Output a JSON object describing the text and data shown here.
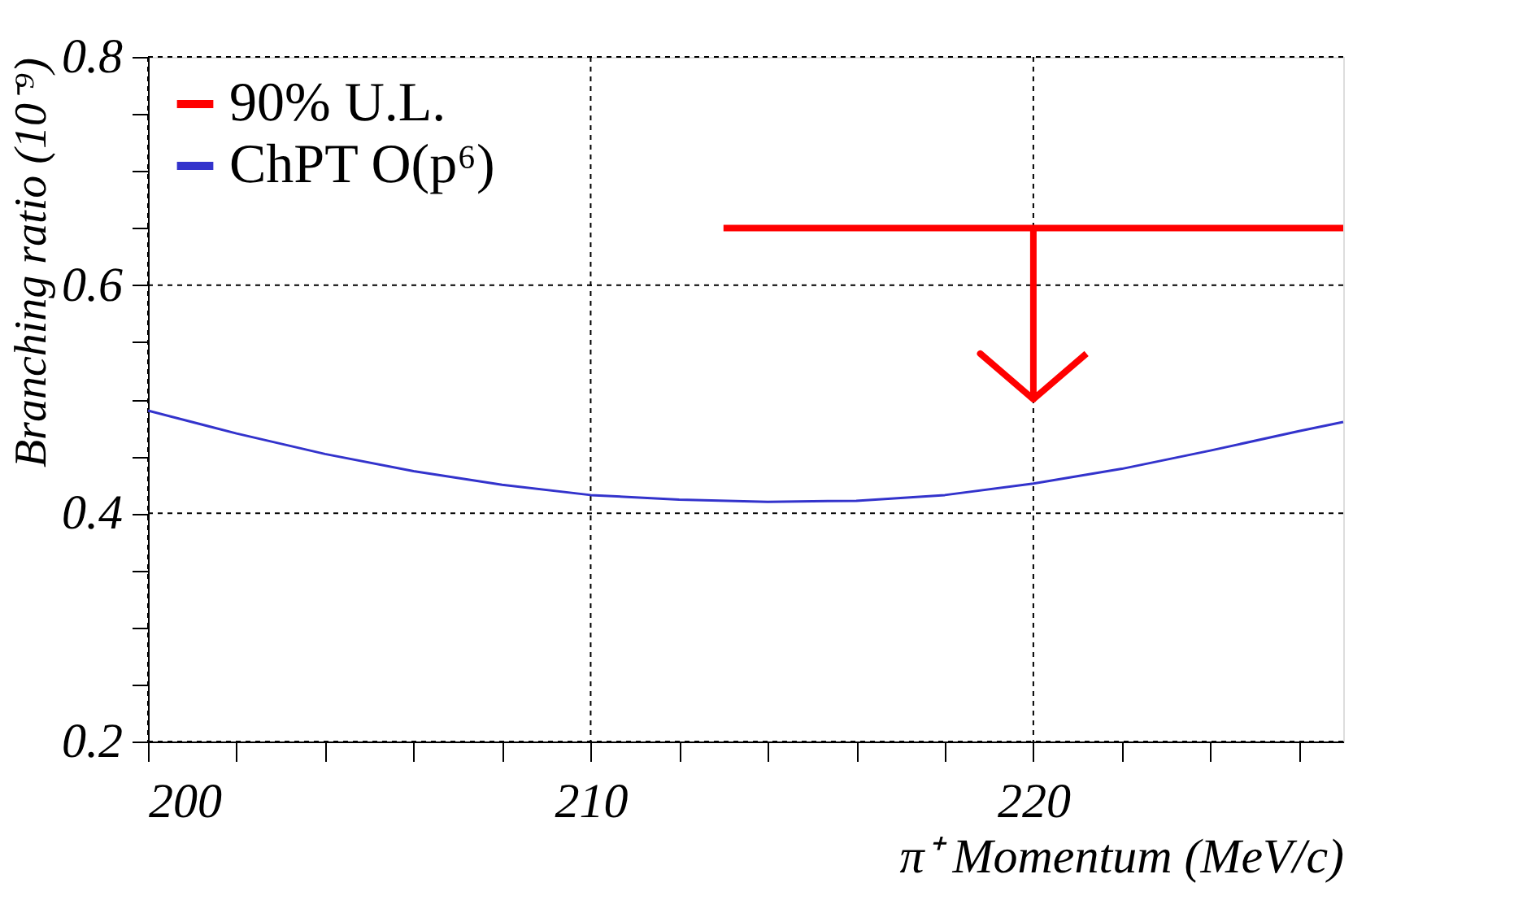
{
  "chart_data": {
    "type": "line",
    "xlabel": "π⁺ Momentum (MeV/c)",
    "ylabel": "Branching ratio (10⁻⁹)",
    "xlim": [
      200,
      227
    ],
    "ylim": [
      0.2,
      0.8
    ],
    "xticks": [
      200,
      {
        "value": 202,
        "label": null
      },
      {
        "value": 204,
        "label": null
      },
      {
        "value": 206,
        "label": null
      },
      {
        "value": 208,
        "label": null
      },
      210,
      {
        "value": 212,
        "label": null
      },
      {
        "value": 214,
        "label": null
      },
      {
        "value": 216,
        "label": null
      },
      {
        "value": 218,
        "label": null
      },
      220,
      {
        "value": 222,
        "label": null
      },
      {
        "value": 224,
        "label": null
      },
      {
        "value": 226,
        "label": null
      }
    ],
    "yticks": [
      0.2,
      {
        "value": 0.25,
        "label": null
      },
      {
        "value": 0.3,
        "label": null
      },
      {
        "value": 0.35,
        "label": null
      },
      0.4,
      {
        "value": 0.45,
        "label": null
      },
      {
        "value": 0.5,
        "label": null
      },
      {
        "value": 0.55,
        "label": null
      },
      0.6,
      {
        "value": 0.65,
        "label": null
      },
      {
        "value": 0.7,
        "label": null
      },
      {
        "value": 0.75,
        "label": null
      },
      0.8
    ],
    "grid": true,
    "line_style": "dashed",
    "legend": "top left",
    "marker": "none",
    "series": [
      {
        "name": "90% U.L.",
        "color": "#ff0000",
        "x": [
          213,
          227
        ],
        "values": [
          0.65,
          0.65
        ],
        "line_style": "solid"
      },
      {
        "color": "#ff0000",
        "x": [
          220,
          220,
          218.8,
          220,
          221.2
        ],
        "values": [
          0.65,
          0.5,
          0.54,
          0.5,
          0.54
        ],
        "line_style": "solid"
      },
      {
        "name": "ChPT O(p⁶)",
        "color": "#3333cc",
        "x": [
          200,
          202,
          204,
          206,
          208,
          210,
          212,
          214,
          216,
          218,
          220,
          222,
          224,
          226,
          227
        ],
        "values": [
          0.49,
          0.47,
          0.452,
          0.437,
          0.425,
          0.416,
          0.412,
          0.41,
          0.411,
          0.416,
          0.426,
          0.439,
          0.455,
          0.472,
          0.48
        ],
        "line_style": "solid"
      }
    ]
  }
}
